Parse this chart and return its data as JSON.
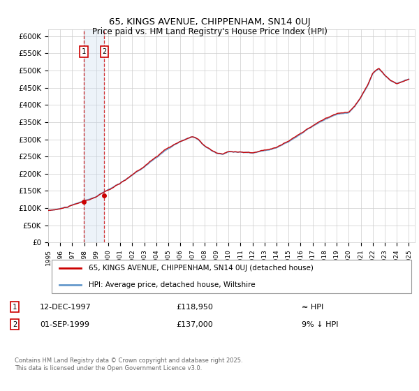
{
  "title1": "65, KINGS AVENUE, CHIPPENHAM, SN14 0UJ",
  "title2": "Price paid vs. HM Land Registry's House Price Index (HPI)",
  "legend1": "65, KINGS AVENUE, CHIPPENHAM, SN14 0UJ (detached house)",
  "legend2": "HPI: Average price, detached house, Wiltshire",
  "footnote": "Contains HM Land Registry data © Crown copyright and database right 2025.\nThis data is licensed under the Open Government Licence v3.0.",
  "annotation1_label": "1",
  "annotation1_date": "12-DEC-1997",
  "annotation1_price": "£118,950",
  "annotation1_hpi": "≈ HPI",
  "annotation2_label": "2",
  "annotation2_date": "01-SEP-1999",
  "annotation2_price": "£137,000",
  "annotation2_hpi": "9% ↓ HPI",
  "sale1_year": 1997.95,
  "sale1_value": 118950,
  "sale2_year": 1999.67,
  "sale2_value": 137000,
  "ylim": [
    0,
    620000
  ],
  "yticks": [
    0,
    50000,
    100000,
    150000,
    200000,
    250000,
    300000,
    350000,
    400000,
    450000,
    500000,
    550000,
    600000
  ],
  "red_color": "#cc0000",
  "blue_color": "#6699cc",
  "shade_color": "#ccddf0",
  "grid_color": "#cccccc",
  "bg_color": "#ffffff"
}
